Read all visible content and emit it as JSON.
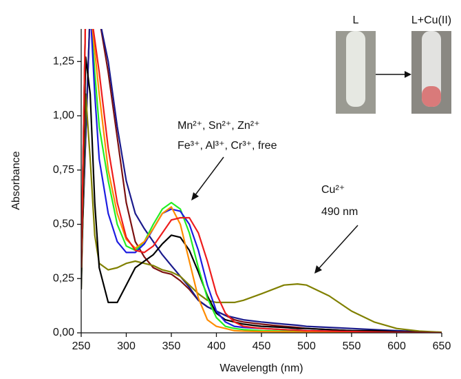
{
  "chart_data": {
    "type": "line",
    "x_label": "Wavelength (nm)",
    "y_label": "Absorbance",
    "annotations": [
      "Mn²⁺, Sn²⁺, Zn²⁺",
      "Fe³⁺, Al³⁺, Cr³⁺, free",
      "Cu²⁺",
      "490 nm"
    ],
    "inset_labels": [
      "L",
      "L+Cu(II)"
    ],
    "xlim": [
      250,
      650
    ],
    "xticks": [
      250,
      300,
      350,
      400,
      450,
      500,
      550,
      600,
      650
    ],
    "ylim": [
      0,
      1.4
    ],
    "yticks": [
      {
        "value": 0,
        "label": "0,00"
      },
      {
        "value": 0.25,
        "label": "0,25"
      },
      {
        "value": 0.5,
        "label": "0,50"
      },
      {
        "value": 0.75,
        "label": "0,75"
      },
      {
        "value": 1.0,
        "label": "1,00"
      },
      {
        "value": 1.25,
        "label": "1,25"
      }
    ],
    "x": [
      250,
      255,
      260,
      265,
      270,
      280,
      290,
      300,
      310,
      320,
      330,
      340,
      350,
      360,
      370,
      380,
      390,
      400,
      410,
      420,
      430,
      450,
      475,
      490,
      500,
      525,
      550,
      575,
      600,
      625,
      650
    ],
    "series": [
      {
        "color": "#7b1010",
        "values": [
          0.3,
          0.9,
          1.5,
          1.5,
          1.45,
          1.2,
          0.9,
          0.6,
          0.42,
          0.35,
          0.3,
          0.28,
          0.27,
          0.24,
          0.2,
          0.15,
          0.12,
          0.1,
          0.08,
          0.06,
          0.05,
          0.04,
          0.03,
          0.025,
          0.02,
          0.015,
          0.01,
          0.008,
          0.005,
          0.003,
          0.0
        ]
      },
      {
        "color": "#1a1a8c",
        "values": [
          0.3,
          0.9,
          1.5,
          1.5,
          1.45,
          1.25,
          0.95,
          0.7,
          0.55,
          0.48,
          0.42,
          0.36,
          0.31,
          0.26,
          0.21,
          0.15,
          0.12,
          0.1,
          0.08,
          0.07,
          0.06,
          0.05,
          0.04,
          0.035,
          0.03,
          0.025,
          0.02,
          0.015,
          0.01,
          0.005,
          0.0
        ]
      },
      {
        "color": "#808000",
        "values": [
          0.2,
          1.1,
          0.8,
          0.45,
          0.32,
          0.29,
          0.3,
          0.32,
          0.33,
          0.32,
          0.31,
          0.29,
          0.28,
          0.26,
          0.22,
          0.18,
          0.15,
          0.14,
          0.14,
          0.14,
          0.15,
          0.18,
          0.22,
          0.225,
          0.22,
          0.17,
          0.1,
          0.05,
          0.02,
          0.008,
          0.003
        ]
      },
      {
        "color": "#000000",
        "values": [
          0.2,
          1.27,
          1.1,
          0.6,
          0.3,
          0.14,
          0.14,
          0.22,
          0.3,
          0.33,
          0.36,
          0.41,
          0.45,
          0.44,
          0.38,
          0.28,
          0.17,
          0.09,
          0.06,
          0.05,
          0.04,
          0.03,
          0.025,
          0.02,
          0.02,
          0.015,
          0.01,
          0.01,
          0.005,
          0.003,
          0.0
        ]
      },
      {
        "color": "#22ee22",
        "values": [
          0.3,
          1.5,
          1.5,
          1.2,
          0.95,
          0.7,
          0.5,
          0.4,
          0.38,
          0.42,
          0.5,
          0.57,
          0.6,
          0.57,
          0.46,
          0.3,
          0.16,
          0.07,
          0.03,
          0.02,
          0.015,
          0.01,
          0.008,
          0.006,
          0.005,
          0.004,
          0.003,
          0.002,
          0.001,
          0.0,
          0.0
        ]
      },
      {
        "color": "#1c1ce0",
        "values": [
          0.3,
          1.5,
          1.5,
          1.1,
          0.8,
          0.55,
          0.42,
          0.37,
          0.37,
          0.41,
          0.48,
          0.55,
          0.57,
          0.56,
          0.5,
          0.38,
          0.22,
          0.1,
          0.05,
          0.03,
          0.025,
          0.02,
          0.015,
          0.012,
          0.01,
          0.008,
          0.005,
          0.003,
          0.002,
          0.001,
          0.0
        ]
      },
      {
        "color": "#ff8c00",
        "values": [
          0.3,
          1.5,
          1.5,
          1.3,
          1.1,
          0.75,
          0.55,
          0.43,
          0.39,
          0.42,
          0.48,
          0.55,
          0.58,
          0.5,
          0.33,
          0.16,
          0.06,
          0.03,
          0.02,
          0.01,
          0.008,
          0.006,
          0.005,
          0.004,
          0.003,
          0.002,
          0.001,
          0.001,
          0.0,
          0.0,
          0.0
        ]
      },
      {
        "color": "#ee1c1c",
        "values": [
          0.3,
          1.5,
          1.5,
          1.35,
          1.2,
          0.85,
          0.6,
          0.44,
          0.38,
          0.37,
          0.4,
          0.46,
          0.52,
          0.53,
          0.53,
          0.46,
          0.33,
          0.18,
          0.09,
          0.05,
          0.03,
          0.02,
          0.015,
          0.012,
          0.01,
          0.008,
          0.006,
          0.004,
          0.002,
          0.001,
          0.0
        ]
      }
    ]
  }
}
